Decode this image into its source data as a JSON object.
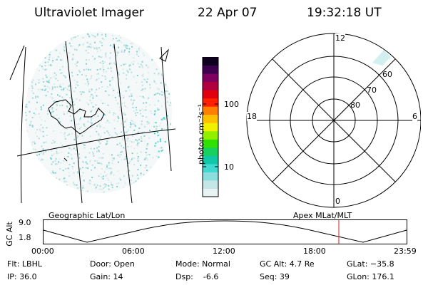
{
  "header": {
    "instrument": "Ultraviolet Imager",
    "date": "22 Apr 07",
    "time": "19:32:18 UT"
  },
  "colorbar": {
    "unit": "photon cm⁻²s⁻¹",
    "ticks": [
      "100",
      "10"
    ],
    "colors": [
      "#e8f4f4",
      "#c4e6e6",
      "#8cdede",
      "#40d8d0",
      "#10c8a8",
      "#18d060",
      "#30e000",
      "#90f000",
      "#f0f000",
      "#ffc000",
      "#ff8000",
      "#ff2000",
      "#e00010",
      "#b00040",
      "#800060",
      "#400050",
      "#100020"
    ]
  },
  "polar": {
    "mlt_labels": {
      "top": "12",
      "left": "18",
      "right": "6",
      "bottom": "0"
    },
    "lat_labels": [
      "60",
      "70",
      "80"
    ]
  },
  "timeline": {
    "left_title": "Geographic Lat/Lon",
    "right_title": "Apex MLat/MLT",
    "yaxis_label": "GC Alt",
    "y_ticks": [
      "9.0",
      "1.8"
    ],
    "x_ticks": [
      "00:00",
      "06:00",
      "12:00",
      "18:00",
      "23:59"
    ],
    "marker_color": "#d02020"
  },
  "info": {
    "col1": [
      "Flt: LBHL",
      "IP: 36.0"
    ],
    "col2": [
      "Door: Open",
      "Gain: 14"
    ],
    "col3": [
      "Mode: Normal",
      "Dsp:    -6.6"
    ],
    "col4": [
      "GC Alt: 4.7 Re",
      "Seq: 39"
    ],
    "col5": [
      "GLat: −35.8",
      "GLon: 176.1"
    ]
  }
}
